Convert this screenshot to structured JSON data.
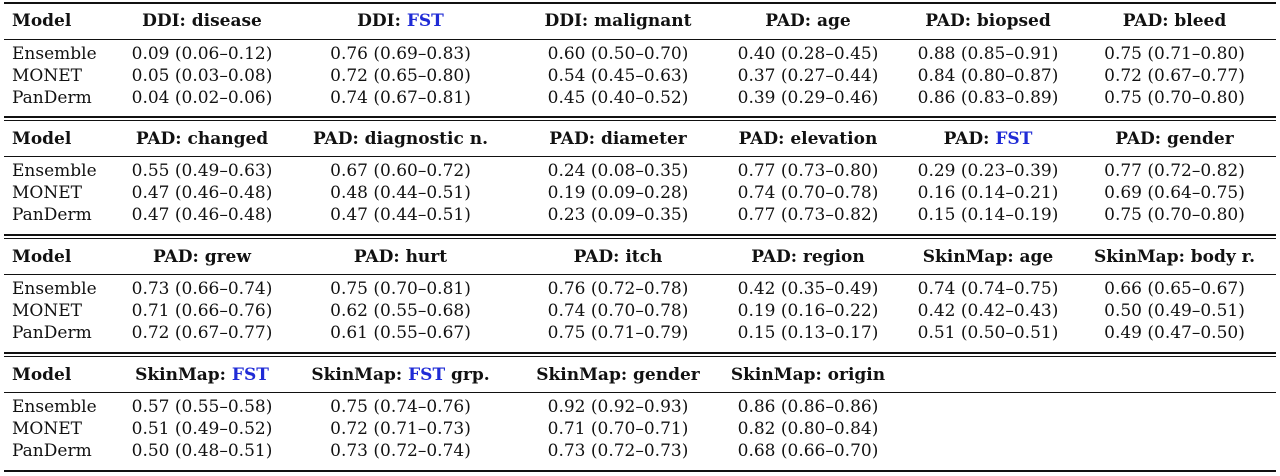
{
  "blocks": [
    {
      "headers": [
        {
          "prefix": "Model",
          "hl": "",
          "suffix": ""
        },
        {
          "prefix": "DDI: disease",
          "hl": "",
          "suffix": ""
        },
        {
          "prefix": "DDI: ",
          "hl": "FST",
          "suffix": ""
        },
        {
          "prefix": "DDI: malignant",
          "hl": "",
          "suffix": ""
        },
        {
          "prefix": "PAD: age",
          "hl": "",
          "suffix": ""
        },
        {
          "prefix": "PAD: biopsed",
          "hl": "",
          "suffix": ""
        },
        {
          "prefix": "PAD: bleed",
          "hl": "",
          "suffix": ""
        }
      ],
      "rows": [
        [
          "Ensemble",
          "0.09 (0.06–0.12)",
          "0.76 (0.69–0.83)",
          "0.60 (0.50–0.70)",
          "0.40 (0.28–0.45)",
          "0.88 (0.85–0.91)",
          "0.75 (0.71–0.80)"
        ],
        [
          "MONET",
          "0.05 (0.03–0.08)",
          "0.72 (0.65–0.80)",
          "0.54 (0.45–0.63)",
          "0.37 (0.27–0.44)",
          "0.84 (0.80–0.87)",
          "0.72 (0.67–0.77)"
        ],
        [
          "PanDerm",
          "0.04 (0.02–0.06)",
          "0.74 (0.67–0.81)",
          "0.45 (0.40–0.52)",
          "0.39 (0.29–0.46)",
          "0.86 (0.83–0.89)",
          "0.75 (0.70–0.80)"
        ]
      ]
    },
    {
      "headers": [
        {
          "prefix": "Model",
          "hl": "",
          "suffix": ""
        },
        {
          "prefix": "PAD: changed",
          "hl": "",
          "suffix": ""
        },
        {
          "prefix": "PAD: diagnostic n.",
          "hl": "",
          "suffix": ""
        },
        {
          "prefix": "PAD: diameter",
          "hl": "",
          "suffix": ""
        },
        {
          "prefix": "PAD: elevation",
          "hl": "",
          "suffix": ""
        },
        {
          "prefix": "PAD: ",
          "hl": "FST",
          "suffix": ""
        },
        {
          "prefix": "PAD: gender",
          "hl": "",
          "suffix": ""
        }
      ],
      "rows": [
        [
          "Ensemble",
          "0.55 (0.49–0.63)",
          "0.67 (0.60–0.72)",
          "0.24 (0.08–0.35)",
          "0.77 (0.73–0.80)",
          "0.29 (0.23–0.39)",
          "0.77 (0.72–0.82)"
        ],
        [
          "MONET",
          "0.47 (0.46–0.48)",
          "0.48 (0.44–0.51)",
          "0.19 (0.09–0.28)",
          "0.74 (0.70–0.78)",
          "0.16 (0.14–0.21)",
          "0.69 (0.64–0.75)"
        ],
        [
          "PanDerm",
          "0.47 (0.46–0.48)",
          "0.47 (0.44–0.51)",
          "0.23 (0.09–0.35)",
          "0.77 (0.73–0.82)",
          "0.15 (0.14–0.19)",
          "0.75 (0.70–0.80)"
        ]
      ]
    },
    {
      "headers": [
        {
          "prefix": "Model",
          "hl": "",
          "suffix": ""
        },
        {
          "prefix": "PAD: grew",
          "hl": "",
          "suffix": ""
        },
        {
          "prefix": "PAD: hurt",
          "hl": "",
          "suffix": ""
        },
        {
          "prefix": "PAD: itch",
          "hl": "",
          "suffix": ""
        },
        {
          "prefix": "PAD: region",
          "hl": "",
          "suffix": ""
        },
        {
          "prefix": "SkinMap: age",
          "hl": "",
          "suffix": ""
        },
        {
          "prefix": "SkinMap: body r.",
          "hl": "",
          "suffix": ""
        }
      ],
      "rows": [
        [
          "Ensemble",
          "0.73 (0.66–0.74)",
          "0.75 (0.70–0.81)",
          "0.76 (0.72–0.78)",
          "0.42 (0.35–0.49)",
          "0.74 (0.74–0.75)",
          "0.66 (0.65–0.67)"
        ],
        [
          "MONET",
          "0.71 (0.66–0.76)",
          "0.62 (0.55–0.68)",
          "0.74 (0.70–0.78)",
          "0.19 (0.16–0.22)",
          "0.42 (0.42–0.43)",
          "0.50 (0.49–0.51)"
        ],
        [
          "PanDerm",
          "0.72 (0.67–0.77)",
          "0.61 (0.55–0.67)",
          "0.75 (0.71–0.79)",
          "0.15 (0.13–0.17)",
          "0.51 (0.50–0.51)",
          "0.49 (0.47–0.50)"
        ]
      ]
    },
    {
      "headers": [
        {
          "prefix": "Model",
          "hl": "",
          "suffix": ""
        },
        {
          "prefix": "SkinMap: ",
          "hl": "FST",
          "suffix": ""
        },
        {
          "prefix": "SkinMap: ",
          "hl": "FST",
          "suffix": " grp."
        },
        {
          "prefix": "SkinMap: gender",
          "hl": "",
          "suffix": ""
        },
        {
          "prefix": "SkinMap: origin",
          "hl": "",
          "suffix": ""
        },
        {
          "prefix": "",
          "hl": "",
          "suffix": ""
        },
        {
          "prefix": "",
          "hl": "",
          "suffix": ""
        }
      ],
      "rows": [
        [
          "Ensemble",
          "0.57 (0.55–0.58)",
          "0.75 (0.74–0.76)",
          "0.92 (0.92–0.93)",
          "0.86 (0.86–0.86)",
          "",
          ""
        ],
        [
          "MONET",
          "0.51 (0.49–0.52)",
          "0.72 (0.71–0.73)",
          "0.71 (0.70–0.71)",
          "0.82 (0.80–0.84)",
          "",
          ""
        ],
        [
          "PanDerm",
          "0.50 (0.48–0.51)",
          "0.73 (0.72–0.74)",
          "0.73 (0.72–0.73)",
          "0.68 (0.66–0.70)",
          "",
          ""
        ]
      ]
    }
  ],
  "colors": {
    "highlight": "#1f2bd6",
    "rule": "#111111"
  }
}
